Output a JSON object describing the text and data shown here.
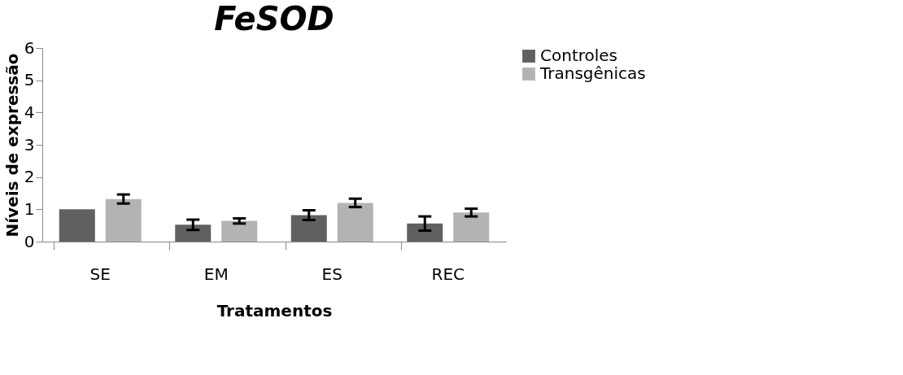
{
  "chart_data": {
    "type": "bar",
    "title": "FeSOD",
    "xlabel": "Tratamentos",
    "ylabel": "Níveis de expressão",
    "categories": [
      "SE",
      "EM",
      "ES",
      "REC"
    ],
    "series": [
      {
        "name": "Controles",
        "color": "#606060",
        "values": [
          1.0,
          0.52,
          0.82,
          0.56
        ],
        "errors": [
          null,
          0.16,
          0.15,
          0.22
        ]
      },
      {
        "name": "Transgênicas",
        "color": "#b3b3b3",
        "values": [
          1.32,
          0.64,
          1.2,
          0.9
        ],
        "errors": [
          0.14,
          0.08,
          0.13,
          0.12
        ]
      }
    ],
    "ylim": [
      0,
      6
    ],
    "yticks": [
      0,
      1,
      2,
      3,
      4,
      5,
      6
    ],
    "grid": false,
    "legend": "right"
  }
}
